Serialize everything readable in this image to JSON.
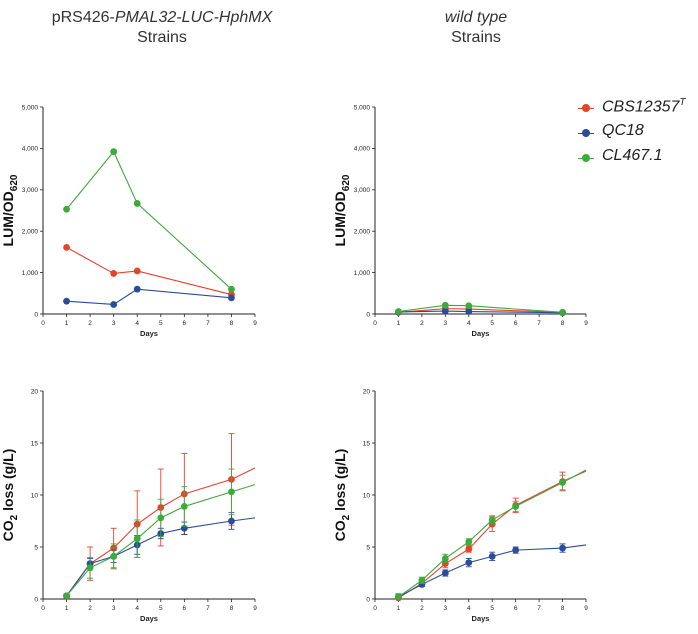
{
  "titles": {
    "left_line1_plain": "pRS426-",
    "left_line1_italic": "PMAL32-LUC-HphMX",
    "left_line2": "Strains",
    "right_line1": "wild type",
    "right_line2": "Strains"
  },
  "legend": {
    "items": [
      {
        "label": "CBS12357",
        "sup": "T",
        "color": "#e8412c"
      },
      {
        "label": "QC18",
        "sup": "",
        "color": "#2b4b9b"
      },
      {
        "label": "CL467.1",
        "sup": "",
        "color": "#3dab3a"
      }
    ]
  },
  "chart_data": [
    {
      "id": "lum-left",
      "type": "line",
      "ylabel_main": "LUM/OD",
      "ylabel_sub": "620",
      "xlabel": "Days",
      "xlim": [
        0,
        9
      ],
      "ylim": [
        0,
        5000
      ],
      "xticks": [
        "0",
        "1",
        "2",
        "3",
        "4",
        "5",
        "6",
        "7",
        "8",
        "9"
      ],
      "yticks": [
        "0",
        "1,000",
        "2,000",
        "3,000",
        "4,000",
        "5,000"
      ],
      "ytick_values": [
        0,
        1000,
        2000,
        3000,
        4000,
        5000
      ],
      "series": [
        {
          "name": "CBS12357T",
          "color": "#e8412c",
          "x": [
            1,
            3,
            4,
            8
          ],
          "y": [
            1610,
            980,
            1040,
            470
          ],
          "err": [
            0,
            0,
            0,
            0
          ]
        },
        {
          "name": "QC18",
          "color": "#2b4b9b",
          "x": [
            1,
            3,
            4,
            8
          ],
          "y": [
            310,
            230,
            600,
            390
          ],
          "err": [
            0,
            0,
            0,
            0
          ]
        },
        {
          "name": "CL467.1",
          "color": "#3dab3a",
          "x": [
            1,
            3,
            4,
            8
          ],
          "y": [
            2530,
            3920,
            2670,
            600
          ],
          "err": [
            0,
            0,
            0,
            0
          ]
        }
      ]
    },
    {
      "id": "lum-right",
      "type": "line",
      "ylabel_main": "LUM/OD",
      "ylabel_sub": "620",
      "xlabel": "Days",
      "xlim": [
        0,
        9
      ],
      "ylim": [
        0,
        5000
      ],
      "xticks": [
        "0",
        "1",
        "2",
        "3",
        "4",
        "5",
        "6",
        "7",
        "8",
        "9"
      ],
      "yticks": [
        "0",
        "1,000",
        "2,000",
        "3,000",
        "4,000",
        "5,000"
      ],
      "ytick_values": [
        0,
        1000,
        2000,
        3000,
        4000,
        5000
      ],
      "series": [
        {
          "name": "CBS12357T",
          "color": "#e8412c",
          "x": [
            1,
            3,
            4,
            8
          ],
          "y": [
            40,
            130,
            120,
            40
          ],
          "err": [
            0,
            0,
            0,
            0
          ]
        },
        {
          "name": "QC18",
          "color": "#2b4b9b",
          "x": [
            1,
            3,
            4,
            8
          ],
          "y": [
            50,
            70,
            60,
            30
          ],
          "err": [
            0,
            0,
            0,
            0
          ]
        },
        {
          "name": "CL467.1",
          "color": "#3dab3a",
          "x": [
            1,
            3,
            4,
            8
          ],
          "y": [
            60,
            210,
            200,
            40
          ],
          "err": [
            0,
            0,
            0,
            0
          ]
        }
      ]
    },
    {
      "id": "co2-left",
      "type": "line",
      "ylabel_main": "CO",
      "ylabel_sub": "2",
      "ylabel_rest": " loss (g/L)",
      "xlabel": "Days",
      "xlim": [
        0,
        9
      ],
      "ylim": [
        0,
        20
      ],
      "xticks": [
        "0",
        "1",
        "2",
        "3",
        "4",
        "5",
        "6",
        "7",
        "8",
        "9"
      ],
      "yticks": [
        "0",
        "5",
        "10",
        "15",
        "20"
      ],
      "ytick_values": [
        0,
        5,
        10,
        15,
        20
      ],
      "series": [
        {
          "name": "CBS12357T",
          "color": "#e8412c",
          "x": [
            1,
            2,
            3,
            4,
            5,
            6,
            8
          ],
          "y": [
            0.3,
            3.4,
            4.9,
            7.2,
            8.8,
            10.1,
            11.5
          ],
          "err": [
            0.2,
            1.6,
            1.9,
            3.2,
            3.7,
            3.9,
            4.4
          ],
          "trend_end": [
            9,
            12.6
          ]
        },
        {
          "name": "QC18",
          "color": "#2b4b9b",
          "x": [
            1,
            2,
            3,
            4,
            5,
            6,
            8
          ],
          "y": [
            0.3,
            3.4,
            4.1,
            5.2,
            6.3,
            6.8,
            7.5
          ],
          "err": [
            0.1,
            0.5,
            0.6,
            0.9,
            0.5,
            0.6,
            0.8
          ],
          "trend_end": [
            9,
            7.8
          ]
        },
        {
          "name": "CL467.1",
          "color": "#3dab3a",
          "x": [
            1,
            2,
            3,
            4,
            5,
            6,
            8
          ],
          "y": [
            0.3,
            3.0,
            4.1,
            5.8,
            7.8,
            8.9,
            10.3
          ],
          "err": [
            0.1,
            1.0,
            1.2,
            1.8,
            1.8,
            1.9,
            2.2
          ],
          "trend_end": [
            9,
            11.0
          ]
        }
      ]
    },
    {
      "id": "co2-right",
      "type": "line",
      "ylabel_main": "CO",
      "ylabel_sub": "2",
      "ylabel_rest": " loss (g/L)",
      "xlabel": "Days",
      "xlim": [
        0,
        9
      ],
      "ylim": [
        0,
        20
      ],
      "xticks": [
        "0",
        "1",
        "2",
        "3",
        "4",
        "5",
        "6",
        "7",
        "8",
        "9"
      ],
      "yticks": [
        "0",
        "5",
        "10",
        "15",
        "20"
      ],
      "ytick_values": [
        0,
        5,
        10,
        15,
        20
      ],
      "series": [
        {
          "name": "CBS12357T",
          "color": "#e8412c",
          "x": [
            1,
            2,
            3,
            4,
            5,
            6,
            8
          ],
          "y": [
            0.1,
            1.5,
            3.4,
            4.8,
            7.2,
            9.0,
            11.3
          ],
          "err": [
            0.3,
            0.3,
            0.4,
            0.3,
            0.7,
            0.7,
            0.9
          ],
          "trend_end": [
            9,
            12.3
          ]
        },
        {
          "name": "QC18",
          "color": "#2b4b9b",
          "x": [
            1,
            2,
            3,
            4,
            5,
            6,
            8
          ],
          "y": [
            0.2,
            1.4,
            2.5,
            3.5,
            4.1,
            4.7,
            4.9
          ],
          "err": [
            0.3,
            0.2,
            0.3,
            0.4,
            0.4,
            0.3,
            0.4
          ],
          "trend_end": [
            9,
            5.2
          ]
        },
        {
          "name": "CL467.1",
          "color": "#3dab3a",
          "x": [
            1,
            2,
            3,
            4,
            5,
            6,
            8
          ],
          "y": [
            0.2,
            1.8,
            3.9,
            5.5,
            7.6,
            8.9,
            11.2
          ],
          "err": [
            0.3,
            0.3,
            0.4,
            0.3,
            0.4,
            0.5,
            0.7
          ],
          "trend_end": [
            9,
            12.4
          ]
        }
      ]
    }
  ]
}
